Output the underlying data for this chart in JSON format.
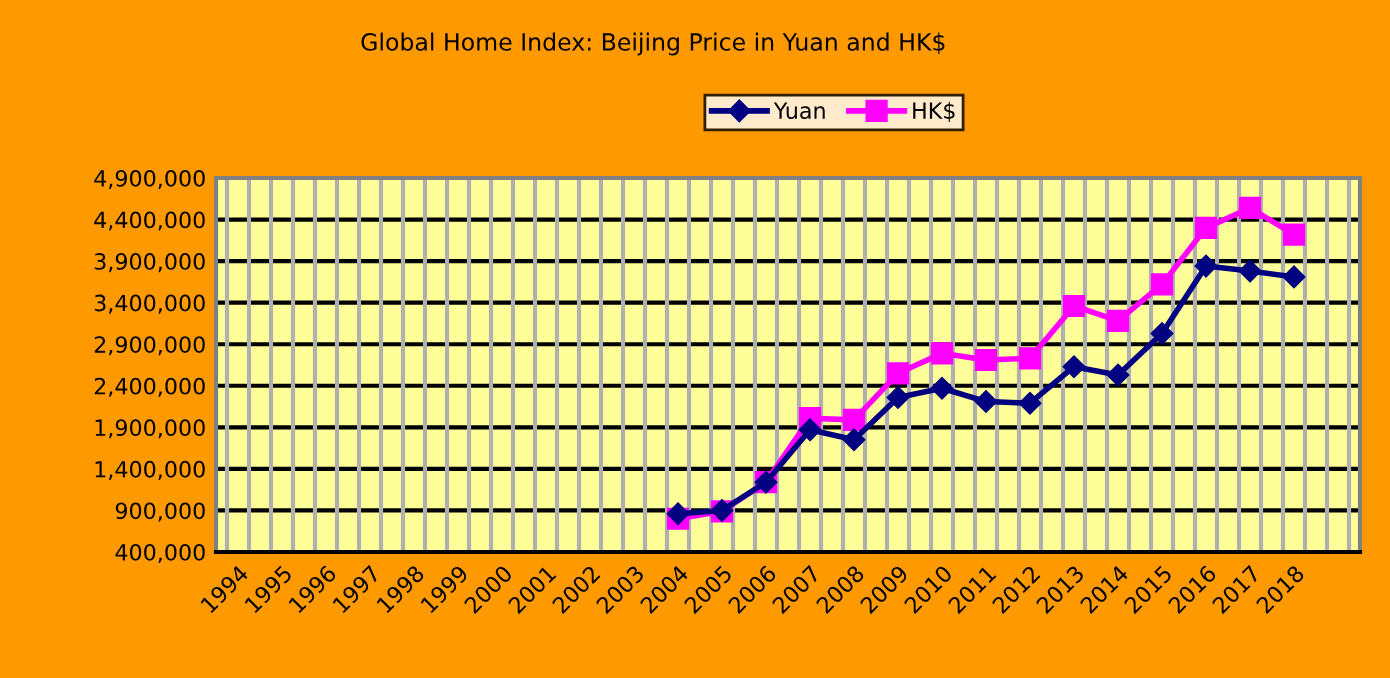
{
  "chart_data": {
    "type": "line",
    "title": "Global Home Index: Beijing Price in Yuan and HK$",
    "categories": [
      "1994",
      "1995",
      "1996",
      "1997",
      "1998",
      "1999",
      "2000",
      "2001",
      "2002",
      "2003",
      "2004",
      "2005",
      "2006",
      "2007",
      "2008",
      "2009",
      "2010",
      "2011",
      "2012",
      "2013",
      "2014",
      "2015",
      "2016",
      "2017",
      "2018",
      null
    ],
    "series": [
      {
        "name": "Yuan",
        "color": "#000080",
        "marker": "diamond",
        "values": [
          null,
          null,
          null,
          null,
          null,
          null,
          null,
          null,
          null,
          null,
          860000,
          900000,
          1240000,
          1870000,
          1750000,
          2260000,
          2370000,
          2210000,
          2190000,
          2630000,
          2530000,
          3030000,
          3840000,
          3780000,
          3710000,
          null
        ]
      },
      {
        "name": "HK$",
        "color": "#ff00ff",
        "marker": "square",
        "values": [
          null,
          null,
          null,
          null,
          null,
          null,
          null,
          null,
          null,
          null,
          800000,
          890000,
          1240000,
          2010000,
          1990000,
          2550000,
          2790000,
          2710000,
          2730000,
          3360000,
          3180000,
          3620000,
          4300000,
          4540000,
          4220000,
          null
        ]
      }
    ],
    "ylim": [
      400000,
      4900000
    ],
    "yticks": [
      {
        "value": 400000,
        "label": "400,000"
      },
      {
        "value": 900000,
        "label": "900,000"
      },
      {
        "value": 1400000,
        "label": "1,400,000"
      },
      {
        "value": 1900000,
        "label": "1,900,000"
      },
      {
        "value": 2400000,
        "label": "2,400,000"
      },
      {
        "value": 2900000,
        "label": "2,900,000"
      },
      {
        "value": 3400000,
        "label": "3,400,000"
      },
      {
        "value": 3900000,
        "label": "3,900,000"
      },
      {
        "value": 4400000,
        "label": "4,400,000"
      },
      {
        "value": 4900000,
        "label": "4,900,000"
      }
    ],
    "grid": true,
    "legend": "top",
    "line_style": "solid"
  }
}
